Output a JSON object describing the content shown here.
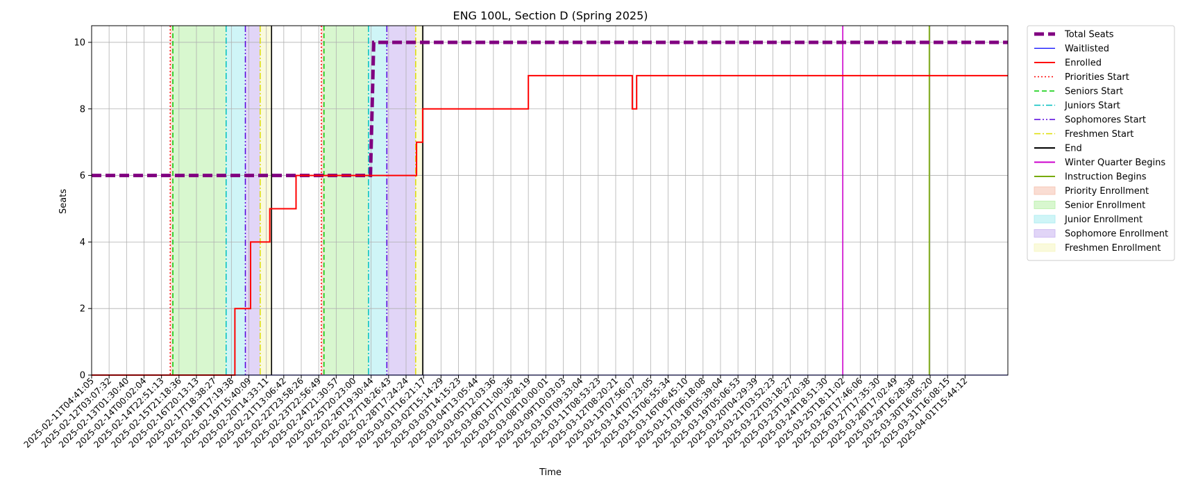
{
  "chart_data": {
    "type": "line",
    "title": "ENG 100L, Section D (Spring 2025)",
    "xlabel": "Time",
    "ylabel": "Seats",
    "ylim": [
      0,
      10.5
    ],
    "xlim_days": [
      0,
      52.45
    ],
    "yticks": [
      0,
      2,
      4,
      6,
      8,
      10
    ],
    "grid": true,
    "legend_position": "outside-right",
    "x_tick_labels": [
      "2025-02-11T04:41:05",
      "2025-02-12T03:07:32",
      "2025-02-13T01:30:40",
      "2025-02-14T00:02:04",
      "2025-02-14T22:51:13",
      "2025-02-15T21:18:36",
      "2025-02-16T20:13:13",
      "2025-02-17T18:38:27",
      "2025-02-18T17:19:38",
      "2025-02-19T15:40:09",
      "2025-02-20T14:33:11",
      "2025-02-21T13:06:42",
      "2025-02-22T23:58:26",
      "2025-02-23T22:56:49",
      "2025-02-24T21:30:57",
      "2025-02-25T20:23:00",
      "2025-02-26T19:30:44",
      "2025-02-27T18:26:43",
      "2025-02-28T17:24:24",
      "2025-03-01T16:21:17",
      "2025-03-02T15:14:29",
      "2025-03-03T14:15:23",
      "2025-03-04T13:05:44",
      "2025-03-05T12:03:36",
      "2025-03-06T11:00:36",
      "2025-03-07T10:28:19",
      "2025-03-08T10:00:01",
      "2025-03-09T10:03:03",
      "2025-03-10T09:33:04",
      "2025-03-11T08:53:23",
      "2025-03-12T08:20:21",
      "2025-03-13T07:56:07",
      "2025-03-14T07:23:05",
      "2025-03-15T06:55:34",
      "2025-03-16T06:45:10",
      "2025-03-17T06:18:08",
      "2025-03-18T05:39:04",
      "2025-03-19T05:06:53",
      "2025-03-20T04:29:39",
      "2025-03-21T03:52:23",
      "2025-03-22T03:18:27",
      "2025-03-23T19:20:38",
      "2025-03-24T18:51:30",
      "2025-03-25T18:11:02",
      "2025-03-26T17:46:06",
      "2025-03-27T17:35:30",
      "2025-03-28T17:02:49",
      "2025-03-29T16:28:38",
      "2025-03-30T16:05:20",
      "2025-03-31T16:08:15",
      "2025-04-01T15:44:12"
    ],
    "series": [
      {
        "name": "Total Seats",
        "color": "#800080",
        "style": "dashed-thick",
        "x": [
          0,
          15.96,
          16.15,
          52.45
        ],
        "y": [
          6,
          6,
          10,
          10
        ]
      },
      {
        "name": "Waitlisted",
        "color": "#0000ff",
        "style": "solid-thin",
        "x": [
          0,
          52.45
        ],
        "y": [
          0,
          0
        ]
      },
      {
        "name": "Enrolled",
        "color": "#ff0000",
        "style": "solid",
        "x": [
          0,
          8.2,
          8.2,
          9.1,
          9.1,
          10.2,
          10.2,
          11.7,
          11.7,
          14.0,
          14.0,
          18.6,
          18.6,
          18.95,
          18.95,
          25.0,
          25.0,
          30.95,
          30.95,
          31.2,
          31.2,
          52.45
        ],
        "y": [
          0,
          0,
          2,
          2,
          4,
          4,
          5,
          5,
          6,
          6,
          6,
          6,
          7,
          7,
          8,
          8,
          9,
          9,
          8,
          8,
          9,
          9
        ]
      }
    ],
    "vertical_lines": [
      {
        "name": "Priorities Start",
        "color": "#ff0000",
        "style": "dotted",
        "x": [
          4.5,
          13.15
        ]
      },
      {
        "name": "Seniors Start",
        "color": "#00cc00",
        "style": "dashed",
        "x": [
          4.65,
          13.3
        ]
      },
      {
        "name": "Juniors Start",
        "color": "#00bfbf",
        "style": "dashdot",
        "x": [
          7.7,
          15.85
        ]
      },
      {
        "name": "Sophomores Start",
        "color": "#5500dd",
        "style": "dashdotdot",
        "x": [
          8.8,
          16.9
        ]
      },
      {
        "name": "Freshmen Start",
        "color": "#dddd00",
        "style": "dashdot",
        "x": [
          9.65,
          18.55
        ]
      },
      {
        "name": "End",
        "color": "#000000",
        "style": "solid",
        "x": [
          10.3,
          18.95
        ]
      },
      {
        "name": "Winter Quarter Begins",
        "color": "#cc00cc",
        "style": "solid",
        "x": [
          43.0
        ]
      },
      {
        "name": "Instruction Begins",
        "color": "#77aa00",
        "style": "solid",
        "x": [
          47.95
        ]
      }
    ],
    "spans": [
      {
        "name": "Priority Enrollment",
        "color": "#f6c1ae",
        "ranges": [
          [
            4.5,
            4.65
          ],
          [
            13.15,
            13.3
          ]
        ]
      },
      {
        "name": "Senior Enrollment",
        "color": "#b8f0a8",
        "ranges": [
          [
            4.65,
            7.7
          ],
          [
            13.3,
            15.85
          ]
        ]
      },
      {
        "name": "Junior Enrollment",
        "color": "#a8ecf0",
        "ranges": [
          [
            7.7,
            8.8
          ],
          [
            15.85,
            16.9
          ]
        ]
      },
      {
        "name": "Sophomore Enrollment",
        "color": "#c9b3f0",
        "ranges": [
          [
            8.8,
            9.65
          ],
          [
            16.9,
            18.55
          ]
        ]
      },
      {
        "name": "Freshmen Enrollment",
        "color": "#f6f6c0",
        "ranges": [
          [
            9.65,
            10.3
          ],
          [
            18.55,
            18.95
          ]
        ]
      }
    ],
    "legend": [
      {
        "label": "Total Seats",
        "kind": "line",
        "color": "#800080",
        "style": "dashed-thick"
      },
      {
        "label": "Waitlisted",
        "kind": "line",
        "color": "#0000ff",
        "style": "solid-thin"
      },
      {
        "label": "Enrolled",
        "kind": "line",
        "color": "#ff0000",
        "style": "solid"
      },
      {
        "label": "Priorities Start",
        "kind": "line",
        "color": "#ff0000",
        "style": "dotted"
      },
      {
        "label": "Seniors Start",
        "kind": "line",
        "color": "#00cc00",
        "style": "dashed"
      },
      {
        "label": "Juniors Start",
        "kind": "line",
        "color": "#00bfbf",
        "style": "dashdot"
      },
      {
        "label": "Sophomores Start",
        "kind": "line",
        "color": "#5500dd",
        "style": "dashdotdot"
      },
      {
        "label": "Freshmen Start",
        "kind": "line",
        "color": "#dddd00",
        "style": "dashdot"
      },
      {
        "label": "End",
        "kind": "line",
        "color": "#000000",
        "style": "solid"
      },
      {
        "label": "Winter Quarter Begins",
        "kind": "line",
        "color": "#cc00cc",
        "style": "solid"
      },
      {
        "label": "Instruction Begins",
        "kind": "line",
        "color": "#77aa00",
        "style": "solid"
      },
      {
        "label": "Priority Enrollment",
        "kind": "patch",
        "color": "#f6c1ae"
      },
      {
        "label": "Senior Enrollment",
        "kind": "patch",
        "color": "#b8f0a8"
      },
      {
        "label": "Junior Enrollment",
        "kind": "patch",
        "color": "#a8ecf0"
      },
      {
        "label": "Sophomore Enrollment",
        "kind": "patch",
        "color": "#c9b3f0"
      },
      {
        "label": "Freshmen Enrollment",
        "kind": "patch",
        "color": "#f6f6c0"
      }
    ]
  }
}
